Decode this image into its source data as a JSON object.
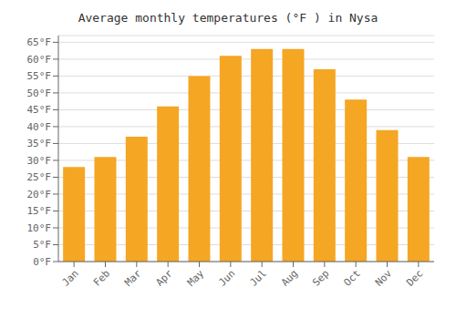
{
  "chart_data": {
    "type": "bar",
    "title": "Average monthly temperatures (°F ) in Nysa",
    "categories": [
      "Jan",
      "Feb",
      "Mar",
      "Apr",
      "May",
      "Jun",
      "Jul",
      "Aug",
      "Sep",
      "Oct",
      "Nov",
      "Dec"
    ],
    "values": [
      28,
      31,
      37,
      46,
      55,
      61,
      63,
      63,
      57,
      48,
      39,
      31
    ],
    "color": "#F5A623",
    "ylim": [
      0,
      67
    ],
    "yticks": [
      {
        "value": 0,
        "label": "0°F"
      },
      {
        "value": 5,
        "label": "5°F"
      },
      {
        "value": 10,
        "label": "10°F"
      },
      {
        "value": 15,
        "label": "15°F"
      },
      {
        "value": 20,
        "label": "20°F"
      },
      {
        "value": 25,
        "label": "25°F"
      },
      {
        "value": 30,
        "label": "30°F"
      },
      {
        "value": 35,
        "label": "35°F"
      },
      {
        "value": 40,
        "label": "40°F"
      },
      {
        "value": 45,
        "label": "45°F"
      },
      {
        "value": 50,
        "label": "50°F"
      },
      {
        "value": 55,
        "label": "55°F"
      },
      {
        "value": 60,
        "label": "60°F"
      },
      {
        "value": 65,
        "label": "65°F"
      }
    ],
    "grid": true
  }
}
